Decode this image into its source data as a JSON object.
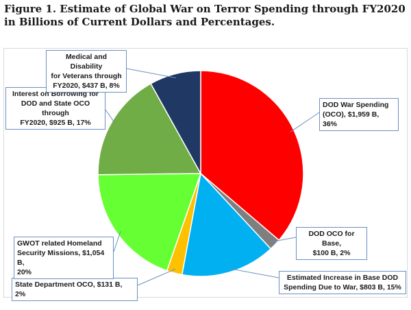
{
  "figure_title": "Figure 1. Estimate of Global War on Terror Spending through FY2020 in Billions of Current Dollars and Percentages.",
  "chart_data": {
    "type": "pie",
    "title": "Figure 1. Estimate of Global War on Terror Spending through FY2020 in Billions of Current Dollars and Percentages.",
    "unit": "Billions of Current Dollars",
    "slices": [
      {
        "label": "DOD War Spending\n(OCO),  $1,959 B, 36%",
        "value": 1959,
        "percent": 36,
        "color": "#ff0000"
      },
      {
        "label": "DOD OCO for Base,\n$100 B, 2%",
        "value": 100,
        "percent": 2,
        "color": "#7f7f7f"
      },
      {
        "label": "Estimated Increase in Base DOD\nSpending Due to War,  $803 B, 15%",
        "value": 803,
        "percent": 15,
        "color": "#00b0f0"
      },
      {
        "label": "State Department OCO,  $131 B, 2%",
        "value": 131,
        "percent": 2,
        "color": "#ffc000"
      },
      {
        "label": "GWOT related Homeland\nSecurity Missions,  $1,054 B,\n20%",
        "value": 1054,
        "percent": 20,
        "color": "#66ff33"
      },
      {
        "label": "Interest on Borrowing for\nDOD and State OCO through\nFY2020,  $925 B, 17%",
        "value": 925,
        "percent": 17,
        "color": "#70ad47"
      },
      {
        "label": "Medical and Disability\nfor Veterans through\nFY2020,  $437 B, 8%",
        "value": 437,
        "percent": 8,
        "color": "#1f3864"
      }
    ]
  }
}
